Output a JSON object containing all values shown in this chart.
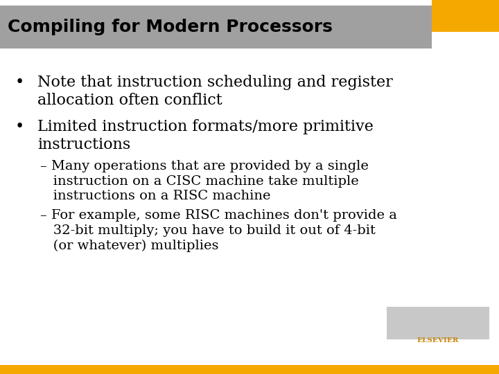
{
  "title": "Compiling for Modern Processors",
  "title_bg_color": "#a0a0a0",
  "title_text_color": "#000000",
  "orange_rect_color": "#f5a800",
  "body_bg_color": "#ffffff",
  "bullet1_line1": "Note that instruction scheduling and register",
  "bullet1_line2": "allocation often conflict",
  "bullet2_line1": "Limited instruction formats/more primitive",
  "bullet2_line2": "instructions",
  "sub1_line1": "– Many operations that are provided by a single",
  "sub1_line2": "   instruction on a CISC machine take multiple",
  "sub1_line3": "   instructions on a RISC machine",
  "sub2_line1": "– For example, some RISC machines don't provide a",
  "sub2_line2": "   32-bit multiply; you have to build it out of 4-bit",
  "sub2_line3": "   (or whatever) multiplies",
  "elsevier_text": "ELSEVIER",
  "bottom_bar_color": "#f5a800",
  "bottom_bar_height": 0.025,
  "title_font_size": 18,
  "body_font_size": 16,
  "sub_font_size": 14
}
